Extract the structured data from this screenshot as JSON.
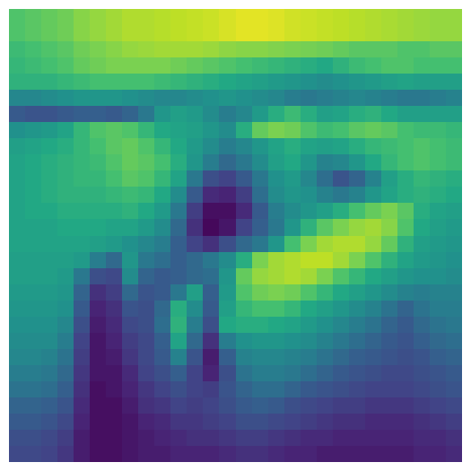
{
  "chart_data": {
    "type": "heatmap",
    "colormap": "viridis",
    "value_range": [
      0,
      1
    ],
    "title": "",
    "xlabel": "",
    "ylabel": "",
    "axes_visible": false,
    "rows": 28,
    "cols": 28,
    "values": [
      [
        0.72,
        0.74,
        0.76,
        0.78,
        0.82,
        0.84,
        0.86,
        0.88,
        0.88,
        0.89,
        0.9,
        0.91,
        0.92,
        0.94,
        0.96,
        0.96,
        0.95,
        0.93,
        0.92,
        0.91,
        0.9,
        0.89,
        0.88,
        0.87,
        0.86,
        0.85,
        0.84,
        0.84
      ],
      [
        0.72,
        0.74,
        0.76,
        0.78,
        0.82,
        0.84,
        0.86,
        0.88,
        0.88,
        0.89,
        0.9,
        0.91,
        0.92,
        0.94,
        0.96,
        0.96,
        0.95,
        0.93,
        0.92,
        0.91,
        0.9,
        0.89,
        0.88,
        0.87,
        0.86,
        0.85,
        0.84,
        0.84
      ],
      [
        0.68,
        0.7,
        0.72,
        0.74,
        0.78,
        0.8,
        0.82,
        0.84,
        0.85,
        0.86,
        0.86,
        0.86,
        0.85,
        0.83,
        0.82,
        0.82,
        0.81,
        0.8,
        0.79,
        0.78,
        0.76,
        0.74,
        0.74,
        0.74,
        0.72,
        0.72,
        0.74,
        0.74
      ],
      [
        0.66,
        0.68,
        0.7,
        0.72,
        0.76,
        0.78,
        0.8,
        0.8,
        0.8,
        0.8,
        0.78,
        0.76,
        0.74,
        0.72,
        0.7,
        0.68,
        0.66,
        0.64,
        0.62,
        0.6,
        0.64,
        0.68,
        0.7,
        0.72,
        0.72,
        0.7,
        0.7,
        0.7
      ],
      [
        0.64,
        0.64,
        0.64,
        0.66,
        0.68,
        0.7,
        0.7,
        0.7,
        0.7,
        0.68,
        0.66,
        0.64,
        0.62,
        0.6,
        0.58,
        0.56,
        0.54,
        0.52,
        0.5,
        0.48,
        0.5,
        0.52,
        0.54,
        0.56,
        0.58,
        0.56,
        0.56,
        0.56
      ],
      [
        0.46,
        0.46,
        0.48,
        0.5,
        0.52,
        0.52,
        0.52,
        0.5,
        0.48,
        0.46,
        0.46,
        0.48,
        0.5,
        0.52,
        0.5,
        0.48,
        0.46,
        0.42,
        0.4,
        0.42,
        0.44,
        0.46,
        0.44,
        0.42,
        0.4,
        0.4,
        0.42,
        0.44
      ],
      [
        0.28,
        0.26,
        0.26,
        0.28,
        0.3,
        0.3,
        0.28,
        0.32,
        0.4,
        0.52,
        0.56,
        0.54,
        0.48,
        0.42,
        0.46,
        0.54,
        0.62,
        0.68,
        0.62,
        0.56,
        0.58,
        0.62,
        0.64,
        0.6,
        0.56,
        0.56,
        0.56,
        0.56
      ],
      [
        0.5,
        0.52,
        0.54,
        0.58,
        0.66,
        0.72,
        0.74,
        0.72,
        0.66,
        0.6,
        0.58,
        0.56,
        0.52,
        0.48,
        0.62,
        0.76,
        0.8,
        0.78,
        0.72,
        0.68,
        0.7,
        0.74,
        0.76,
        0.74,
        0.7,
        0.68,
        0.68,
        0.66
      ],
      [
        0.56,
        0.58,
        0.6,
        0.62,
        0.66,
        0.7,
        0.74,
        0.76,
        0.72,
        0.66,
        0.6,
        0.54,
        0.48,
        0.42,
        0.46,
        0.52,
        0.58,
        0.62,
        0.58,
        0.56,
        0.58,
        0.62,
        0.66,
        0.68,
        0.7,
        0.72,
        0.7,
        0.68
      ],
      [
        0.58,
        0.6,
        0.62,
        0.64,
        0.66,
        0.68,
        0.72,
        0.76,
        0.74,
        0.7,
        0.62,
        0.52,
        0.42,
        0.34,
        0.4,
        0.48,
        0.56,
        0.6,
        0.52,
        0.44,
        0.46,
        0.52,
        0.6,
        0.66,
        0.7,
        0.72,
        0.7,
        0.68
      ],
      [
        0.58,
        0.6,
        0.62,
        0.64,
        0.66,
        0.66,
        0.7,
        0.74,
        0.72,
        0.66,
        0.58,
        0.4,
        0.24,
        0.2,
        0.28,
        0.4,
        0.5,
        0.54,
        0.46,
        0.36,
        0.26,
        0.32,
        0.44,
        0.56,
        0.62,
        0.66,
        0.64,
        0.62
      ],
      [
        0.58,
        0.6,
        0.62,
        0.64,
        0.64,
        0.64,
        0.66,
        0.68,
        0.66,
        0.6,
        0.48,
        0.28,
        0.12,
        0.1,
        0.18,
        0.36,
        0.48,
        0.52,
        0.5,
        0.44,
        0.4,
        0.44,
        0.52,
        0.58,
        0.62,
        0.64,
        0.62,
        0.6
      ],
      [
        0.58,
        0.6,
        0.6,
        0.62,
        0.62,
        0.62,
        0.62,
        0.64,
        0.6,
        0.54,
        0.4,
        0.18,
        0.04,
        0.04,
        0.12,
        0.28,
        0.42,
        0.48,
        0.52,
        0.56,
        0.62,
        0.7,
        0.76,
        0.8,
        0.74,
        0.62,
        0.58,
        0.56
      ],
      [
        0.58,
        0.58,
        0.58,
        0.6,
        0.6,
        0.6,
        0.58,
        0.58,
        0.54,
        0.48,
        0.34,
        0.14,
        0.02,
        0.06,
        0.2,
        0.3,
        0.4,
        0.52,
        0.64,
        0.74,
        0.8,
        0.84,
        0.86,
        0.82,
        0.72,
        0.6,
        0.56,
        0.54
      ],
      [
        0.58,
        0.58,
        0.58,
        0.58,
        0.58,
        0.56,
        0.54,
        0.5,
        0.46,
        0.42,
        0.3,
        0.2,
        0.14,
        0.24,
        0.34,
        0.4,
        0.52,
        0.7,
        0.8,
        0.86,
        0.88,
        0.88,
        0.84,
        0.76,
        0.64,
        0.56,
        0.54,
        0.52
      ],
      [
        0.56,
        0.56,
        0.56,
        0.56,
        0.54,
        0.42,
        0.34,
        0.52,
        0.4,
        0.36,
        0.3,
        0.34,
        0.4,
        0.48,
        0.62,
        0.8,
        0.86,
        0.88,
        0.9,
        0.9,
        0.86,
        0.8,
        0.72,
        0.64,
        0.58,
        0.54,
        0.52,
        0.5
      ],
      [
        0.56,
        0.56,
        0.56,
        0.54,
        0.4,
        0.24,
        0.22,
        0.48,
        0.32,
        0.28,
        0.3,
        0.34,
        0.36,
        0.52,
        0.76,
        0.84,
        0.86,
        0.88,
        0.86,
        0.8,
        0.72,
        0.66,
        0.6,
        0.56,
        0.52,
        0.5,
        0.5,
        0.48
      ],
      [
        0.54,
        0.54,
        0.54,
        0.52,
        0.32,
        0.14,
        0.18,
        0.34,
        0.26,
        0.28,
        0.4,
        0.56,
        0.3,
        0.54,
        0.72,
        0.78,
        0.8,
        0.78,
        0.72,
        0.66,
        0.6,
        0.56,
        0.52,
        0.48,
        0.44,
        0.42,
        0.44,
        0.44
      ],
      [
        0.52,
        0.52,
        0.52,
        0.5,
        0.28,
        0.1,
        0.14,
        0.26,
        0.24,
        0.34,
        0.62,
        0.48,
        0.28,
        0.56,
        0.66,
        0.7,
        0.7,
        0.66,
        0.6,
        0.56,
        0.52,
        0.48,
        0.44,
        0.38,
        0.32,
        0.38,
        0.42,
        0.42
      ],
      [
        0.5,
        0.5,
        0.5,
        0.46,
        0.24,
        0.08,
        0.12,
        0.22,
        0.24,
        0.36,
        0.64,
        0.42,
        0.24,
        0.6,
        0.62,
        0.62,
        0.6,
        0.58,
        0.54,
        0.5,
        0.46,
        0.42,
        0.38,
        0.32,
        0.28,
        0.34,
        0.38,
        0.4
      ],
      [
        0.48,
        0.48,
        0.48,
        0.42,
        0.2,
        0.06,
        0.1,
        0.18,
        0.22,
        0.3,
        0.58,
        0.34,
        0.14,
        0.42,
        0.5,
        0.52,
        0.52,
        0.5,
        0.48,
        0.44,
        0.4,
        0.36,
        0.32,
        0.28,
        0.26,
        0.3,
        0.34,
        0.36
      ],
      [
        0.46,
        0.46,
        0.44,
        0.38,
        0.18,
        0.06,
        0.08,
        0.16,
        0.22,
        0.28,
        0.44,
        0.26,
        0.08,
        0.3,
        0.44,
        0.46,
        0.46,
        0.44,
        0.42,
        0.38,
        0.34,
        0.3,
        0.28,
        0.26,
        0.24,
        0.26,
        0.3,
        0.32
      ],
      [
        0.42,
        0.42,
        0.4,
        0.34,
        0.16,
        0.06,
        0.06,
        0.12,
        0.2,
        0.24,
        0.3,
        0.2,
        0.1,
        0.24,
        0.38,
        0.42,
        0.42,
        0.4,
        0.36,
        0.32,
        0.28,
        0.26,
        0.24,
        0.22,
        0.22,
        0.24,
        0.26,
        0.28
      ],
      [
        0.38,
        0.38,
        0.36,
        0.3,
        0.14,
        0.04,
        0.06,
        0.1,
        0.16,
        0.2,
        0.24,
        0.2,
        0.18,
        0.26,
        0.32,
        0.36,
        0.36,
        0.32,
        0.28,
        0.26,
        0.24,
        0.22,
        0.2,
        0.2,
        0.2,
        0.22,
        0.24,
        0.26
      ],
      [
        0.32,
        0.32,
        0.3,
        0.26,
        0.12,
        0.04,
        0.04,
        0.08,
        0.14,
        0.16,
        0.2,
        0.18,
        0.2,
        0.24,
        0.28,
        0.3,
        0.28,
        0.24,
        0.22,
        0.2,
        0.18,
        0.18,
        0.16,
        0.16,
        0.16,
        0.18,
        0.2,
        0.22
      ],
      [
        0.28,
        0.28,
        0.26,
        0.22,
        0.1,
        0.04,
        0.04,
        0.06,
        0.1,
        0.12,
        0.16,
        0.16,
        0.18,
        0.2,
        0.24,
        0.24,
        0.22,
        0.2,
        0.18,
        0.16,
        0.14,
        0.14,
        0.12,
        0.12,
        0.12,
        0.14,
        0.16,
        0.18
      ],
      [
        0.24,
        0.24,
        0.22,
        0.18,
        0.08,
        0.04,
        0.04,
        0.06,
        0.08,
        0.1,
        0.12,
        0.14,
        0.14,
        0.16,
        0.18,
        0.18,
        0.16,
        0.14,
        0.12,
        0.12,
        0.1,
        0.1,
        0.1,
        0.1,
        0.1,
        0.12,
        0.12,
        0.14
      ],
      [
        0.22,
        0.22,
        0.2,
        0.16,
        0.08,
        0.04,
        0.04,
        0.06,
        0.08,
        0.08,
        0.1,
        0.1,
        0.1,
        0.12,
        0.14,
        0.14,
        0.12,
        0.1,
        0.1,
        0.08,
        0.08,
        0.08,
        0.08,
        0.08,
        0.08,
        0.1,
        0.1,
        0.12
      ]
    ]
  }
}
